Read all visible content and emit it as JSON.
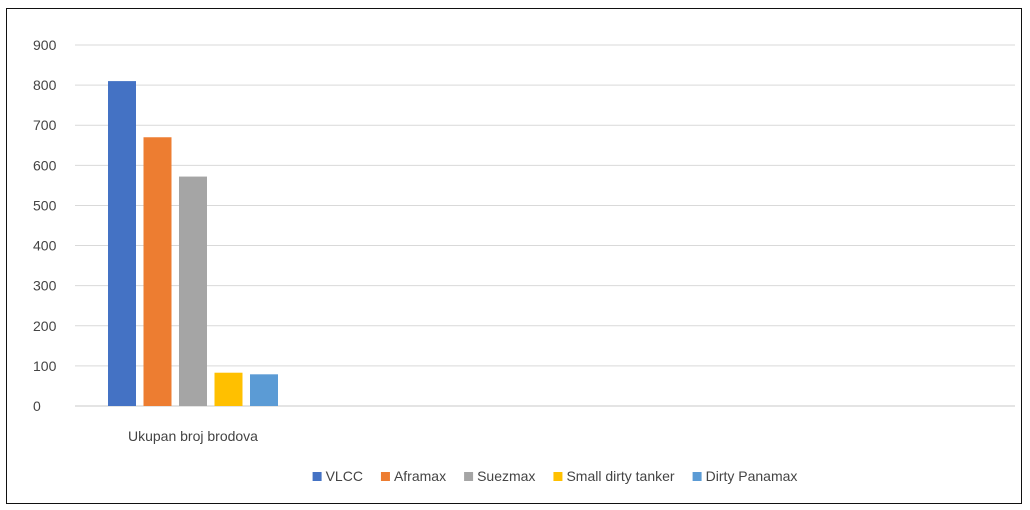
{
  "chart_data": {
    "type": "bar",
    "categories": [
      "Ukupan broj brodova"
    ],
    "series": [
      {
        "name": "VLCC",
        "values": [
          810
        ],
        "color": "#4472C4"
      },
      {
        "name": "Aframax",
        "values": [
          670
        ],
        "color": "#ED7D31"
      },
      {
        "name": "Suezmax",
        "values": [
          572
        ],
        "color": "#A5A5A5"
      },
      {
        "name": "Small dirty tanker",
        "values": [
          83
        ],
        "color": "#FFC000"
      },
      {
        "name": "Dirty Panamax",
        "values": [
          79
        ],
        "color": "#5B9BD5"
      }
    ],
    "y_ticks": [
      "0",
      "100",
      "200",
      "300",
      "400",
      "500",
      "600",
      "700",
      "800",
      "900"
    ],
    "ylim": [
      0,
      900
    ],
    "grid": true,
    "legend_position": "bottom",
    "title": "",
    "xlabel": "",
    "ylabel": ""
  }
}
